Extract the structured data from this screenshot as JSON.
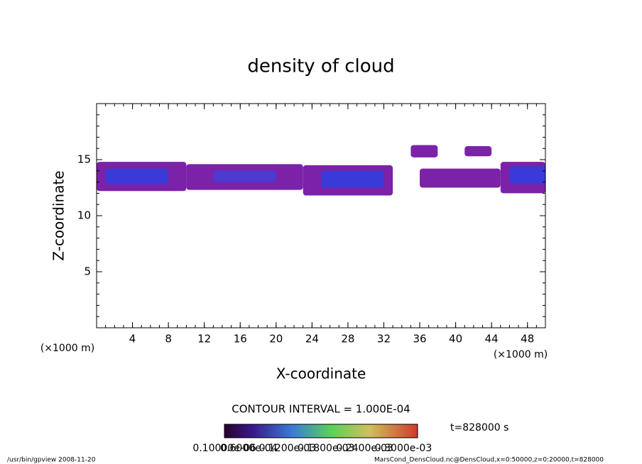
{
  "chart_data": {
    "type": "patches",
    "title": "density of cloud",
    "x_label": "X-coordinate",
    "y_label": "Z-coordinate",
    "x_units_left": "(×1000 m)",
    "x_units_right": "(×1000 m)",
    "contour_note": "CONTOUR INTERVAL = 1.000E-04",
    "time_note": "t=828000 s",
    "colorbar_labels": [
      "0.10000e-06",
      "0.6000e-04",
      "0.1200e-03",
      "0.1800e-03",
      "0.2400e-03",
      "0.3000e-03"
    ],
    "footer_left": "/usr/bin/gpview  2008-11-20",
    "footer_right": "MarsCond_DensCloud.nc@DensCloud,x=0:50000,z=0:20000,t=828000",
    "xlim": [
      0,
      50
    ],
    "ylim": [
      0,
      20
    ],
    "xticks": [
      4,
      8,
      12,
      16,
      20,
      24,
      28,
      32,
      36,
      40,
      44,
      48
    ],
    "yticks": [
      5,
      10,
      15
    ],
    "patches": [
      {
        "x": [
          0,
          10
        ],
        "z": [
          12.2,
          14.8
        ],
        "color": "#7b22a8"
      },
      {
        "x": [
          1,
          8
        ],
        "z": [
          12.8,
          14.2
        ],
        "color": "#3a3ad8"
      },
      {
        "x": [
          10,
          23
        ],
        "z": [
          12.3,
          14.6
        ],
        "color": "#7b22a8"
      },
      {
        "x": [
          13,
          20
        ],
        "z": [
          13.0,
          14.0
        ],
        "color": "#4a3ad0"
      },
      {
        "x": [
          23,
          33
        ],
        "z": [
          11.8,
          14.5
        ],
        "color": "#7b22a8"
      },
      {
        "x": [
          25,
          32
        ],
        "z": [
          12.5,
          14.0
        ],
        "color": "#3a3ad8"
      },
      {
        "x": [
          35,
          38
        ],
        "z": [
          15.2,
          16.3
        ],
        "color": "#7b22a8"
      },
      {
        "x": [
          41,
          44
        ],
        "z": [
          15.3,
          16.2
        ],
        "color": "#7b22a8"
      },
      {
        "x": [
          36,
          45
        ],
        "z": [
          12.5,
          14.2
        ],
        "color": "#7b22a8"
      },
      {
        "x": [
          45,
          50
        ],
        "z": [
          12.0,
          14.8
        ],
        "color": "#7b22a8"
      },
      {
        "x": [
          46,
          50
        ],
        "z": [
          12.8,
          14.4
        ],
        "color": "#3a3ad8"
      }
    ]
  }
}
